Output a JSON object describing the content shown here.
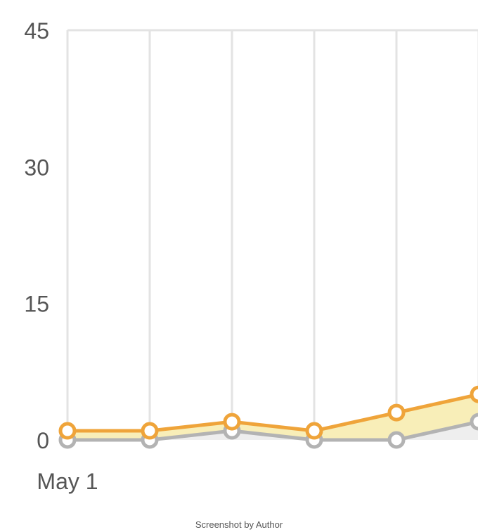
{
  "chart_data": {
    "type": "area",
    "x": [
      "May 1",
      "",
      "",
      "",
      "",
      ""
    ],
    "x_tick_labels_shown": [
      "May 1"
    ],
    "ylim": [
      0,
      45
    ],
    "yticks": [
      0,
      15,
      30,
      45
    ],
    "grid": {
      "vertical": true,
      "horizontal": false
    },
    "series": [
      {
        "values": [
          1,
          1,
          2,
          1,
          3,
          5
        ],
        "color": "#EFA43A",
        "fill": "#F8EEB8"
      },
      {
        "values": [
          0,
          0,
          1,
          0,
          0,
          2
        ],
        "color": "#B3B3B3",
        "fill": "#EEEEEE"
      }
    ]
  },
  "caption": "Screenshot by Author"
}
